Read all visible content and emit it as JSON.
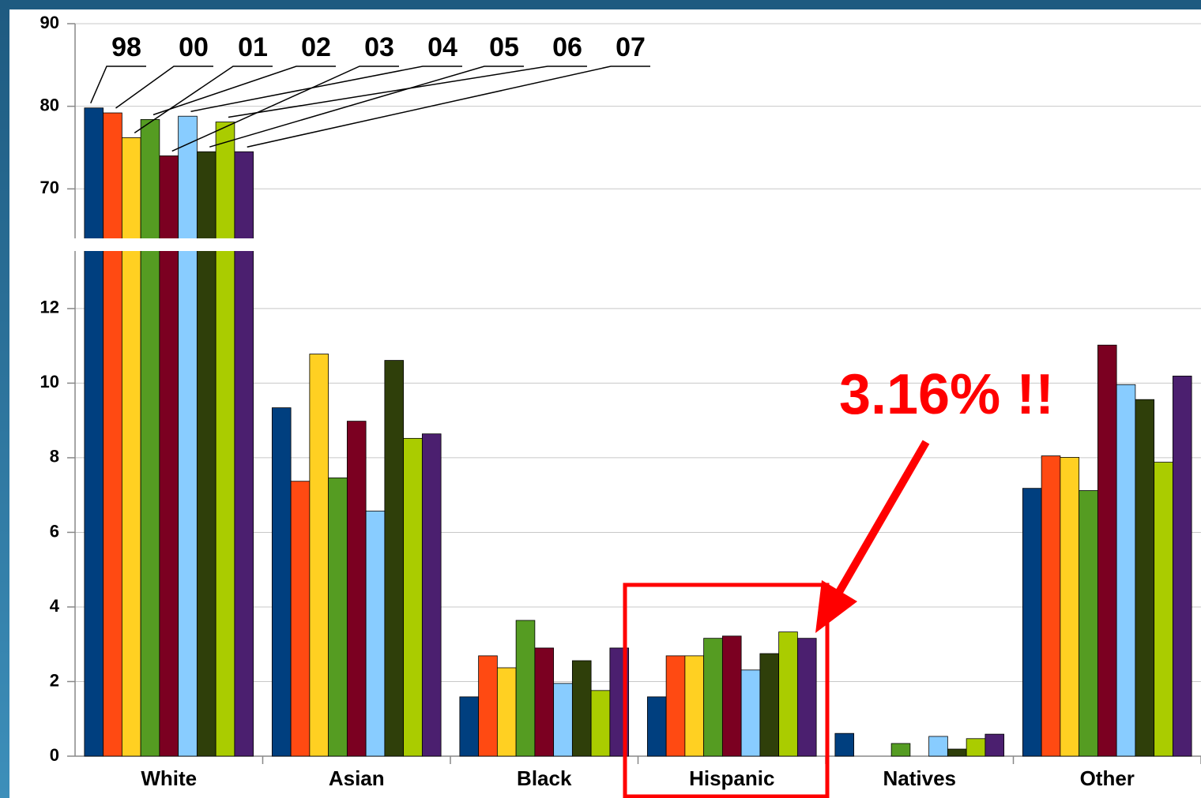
{
  "chart_data": {
    "type": "bar",
    "categories": [
      "White",
      "Asian",
      "Black",
      "Hispanic",
      "Natives",
      "Other"
    ],
    "series": [
      {
        "name": "98",
        "color": "#003f7f",
        "values": [
          79.8,
          9.34,
          1.59,
          1.59,
          0.61,
          7.18
        ]
      },
      {
        "name": "00",
        "color": "#ff4a12",
        "values": [
          79.2,
          7.37,
          2.69,
          2.69,
          0,
          8.05
        ]
      },
      {
        "name": "01",
        "color": "#ffd022",
        "values": [
          76.2,
          10.78,
          2.37,
          2.69,
          0,
          8.01
        ]
      },
      {
        "name": "02",
        "color": "#559c22",
        "values": [
          78.4,
          7.46,
          3.64,
          3.16,
          0.34,
          7.12
        ]
      },
      {
        "name": "03",
        "color": "#7b0021",
        "values": [
          74.0,
          8.98,
          2.9,
          3.22,
          0,
          11.02
        ]
      },
      {
        "name": "04",
        "color": "#88ccff",
        "values": [
          78.8,
          6.57,
          1.95,
          2.31,
          0.53,
          9.96
        ]
      },
      {
        "name": "05",
        "color": "#2f3f0a",
        "values": [
          74.5,
          10.61,
          2.56,
          2.75,
          0.19,
          9.56
        ]
      },
      {
        "name": "06",
        "color": "#aacc00",
        "values": [
          78.1,
          8.52,
          1.76,
          3.33,
          0.47,
          7.88
        ]
      },
      {
        "name": "07",
        "color": "#4b1f6f",
        "values": [
          74.5,
          8.64,
          2.9,
          3.16,
          0.59,
          10.19
        ]
      }
    ],
    "ylim": [
      0,
      90
    ],
    "axis_break": [
      13.5,
      64.2
    ],
    "yticks": [
      0,
      2,
      4,
      6,
      8,
      10,
      12,
      70,
      80,
      90
    ],
    "grid": true,
    "annotation": "3.16% !!"
  }
}
